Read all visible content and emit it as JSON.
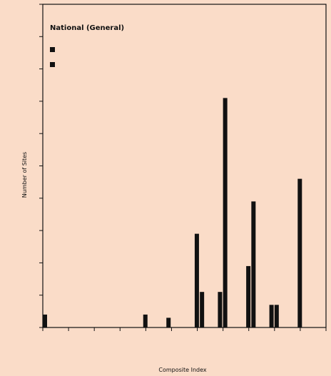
{
  "chart_data": {
    "type": "bar",
    "title": "National (General)",
    "xlabel": "Composite Index",
    "ylabel": "Number of Sites",
    "legend": {
      "placement": "top-left",
      "entries": [
        "",
        "",
        ""
      ],
      "extra": ""
    },
    "bar_color": "#111111",
    "background": "#fadcc8",
    "ylim": [
      0,
      100
    ],
    "x": [
      0,
      39,
      48,
      59,
      61,
      68,
      70,
      79,
      81,
      88,
      90,
      99
    ],
    "values": [
      4,
      4,
      3,
      29,
      11,
      11,
      71,
      19,
      39,
      7,
      7,
      46
    ]
  }
}
